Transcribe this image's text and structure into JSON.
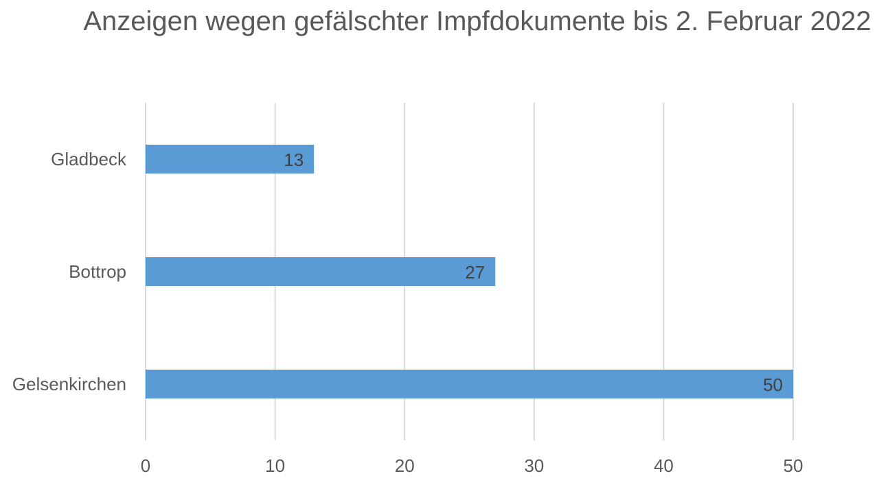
{
  "chart_data": {
    "type": "bar",
    "orientation": "horizontal",
    "title": "Anzeigen wegen gefälschter Impfdokumente bis 2. Februar 2022",
    "categories": [
      "Gladbeck",
      "Bottrop",
      "Gelsenkirchen"
    ],
    "values": [
      13,
      27,
      50
    ],
    "data_labels": [
      "13",
      "27",
      "50"
    ],
    "xlim": [
      0,
      50
    ],
    "x_ticks": [
      "0",
      "10",
      "20",
      "30",
      "40",
      "50"
    ],
    "xlabel": "",
    "ylabel": "",
    "grid": true,
    "legend": "none",
    "bar_color": "#5B9BD5",
    "gridline_color": "#D9D9D9"
  }
}
